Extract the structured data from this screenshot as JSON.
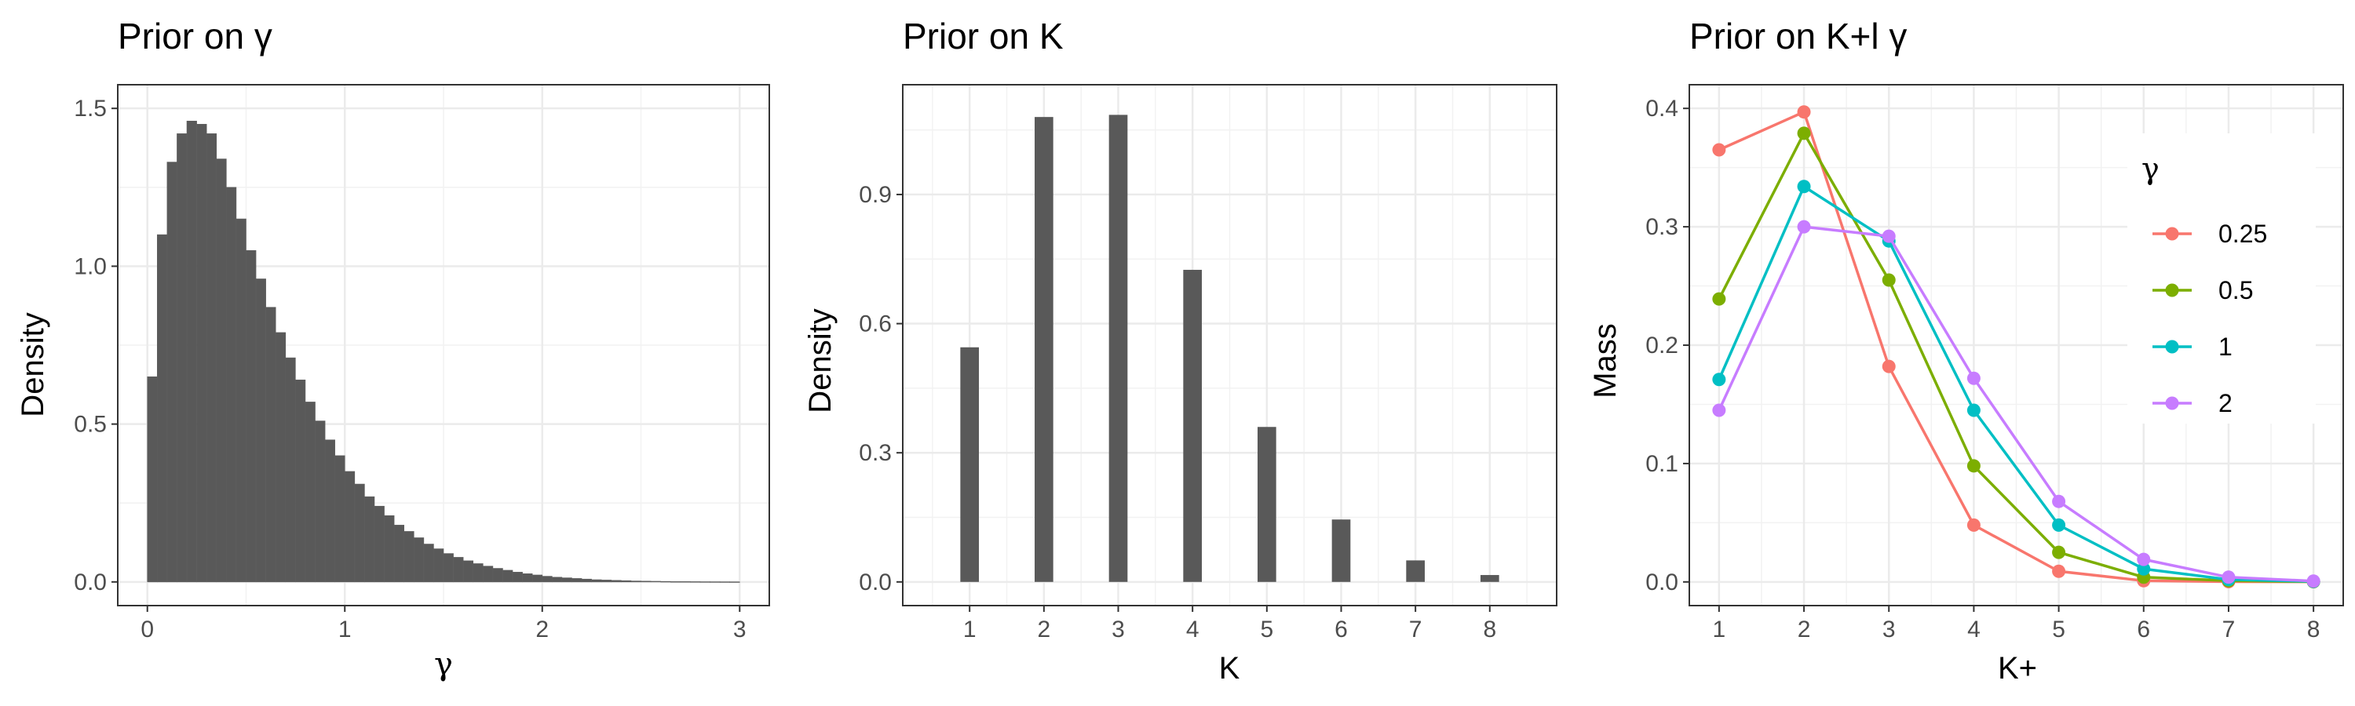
{
  "chart_data": [
    {
      "type": "bar",
      "title": "Prior on γ",
      "xlabel": "γ",
      "ylabel": "Density",
      "xlim": [
        -0.15,
        3.15
      ],
      "ylim": [
        -0.075,
        1.575
      ],
      "x_ticks": [
        "0",
        "1",
        "2",
        "3"
      ],
      "y_ticks": [
        "0.0",
        "0.5",
        "1.0",
        "1.5"
      ],
      "bin_width": 0.05,
      "bin_start": 0.025,
      "values": [
        0.65,
        1.1,
        1.33,
        1.42,
        1.46,
        1.45,
        1.42,
        1.34,
        1.25,
        1.15,
        1.05,
        0.96,
        0.87,
        0.79,
        0.71,
        0.64,
        0.57,
        0.51,
        0.45,
        0.4,
        0.35,
        0.31,
        0.27,
        0.24,
        0.21,
        0.18,
        0.16,
        0.14,
        0.12,
        0.105,
        0.09,
        0.078,
        0.067,
        0.058,
        0.05,
        0.043,
        0.037,
        0.031,
        0.026,
        0.022,
        0.018,
        0.015,
        0.013,
        0.011,
        0.009,
        0.007,
        0.006,
        0.005,
        0.004,
        0.003,
        0.0025,
        0.002,
        0.0015,
        0.001,
        0.001,
        0.0008,
        0.0006,
        0.0005,
        0.0004,
        0.0003
      ],
      "grid": true
    },
    {
      "type": "bar",
      "title": "Prior on K",
      "xlabel": "K",
      "ylabel": "Density",
      "categories": [
        "1",
        "2",
        "3",
        "4",
        "5",
        "6",
        "7",
        "8"
      ],
      "values": [
        0.545,
        1.08,
        1.085,
        0.725,
        0.36,
        0.145,
        0.05,
        0.016
      ],
      "xlim": [
        0.1,
        8.9
      ],
      "ylim": [
        -0.055,
        1.155
      ],
      "y_ticks": [
        "0.0",
        "0.3",
        "0.6",
        "0.9"
      ],
      "grid": true
    },
    {
      "type": "line",
      "title": "Prior on K+l γ",
      "xlabel": "K+",
      "ylabel": "Mass",
      "x": [
        1,
        2,
        3,
        4,
        5,
        6,
        7,
        8
      ],
      "xlim": [
        0.65,
        8.35
      ],
      "ylim": [
        -0.02,
        0.42
      ],
      "y_ticks": [
        "0.0",
        "0.1",
        "0.2",
        "0.3",
        "0.4"
      ],
      "legend_title": "γ",
      "legend_position": "right-inside",
      "series": [
        {
          "name": "0.25",
          "color": "#F8766D",
          "values": [
            0.365,
            0.397,
            0.182,
            0.048,
            0.009,
            0.001,
            0.0002,
            0.0001
          ]
        },
        {
          "name": "0.5",
          "color": "#7CAE00",
          "values": [
            0.239,
            0.379,
            0.255,
            0.098,
            0.025,
            0.004,
            0.001,
            0.0002
          ]
        },
        {
          "name": "1",
          "color": "#00BFC4",
          "values": [
            0.171,
            0.334,
            0.288,
            0.145,
            0.048,
            0.011,
            0.002,
            0.0004
          ]
        },
        {
          "name": "2",
          "color": "#C77CFF",
          "values": [
            0.145,
            0.3,
            0.292,
            0.172,
            0.068,
            0.019,
            0.004,
            0.0007
          ]
        }
      ],
      "grid": true
    }
  ]
}
